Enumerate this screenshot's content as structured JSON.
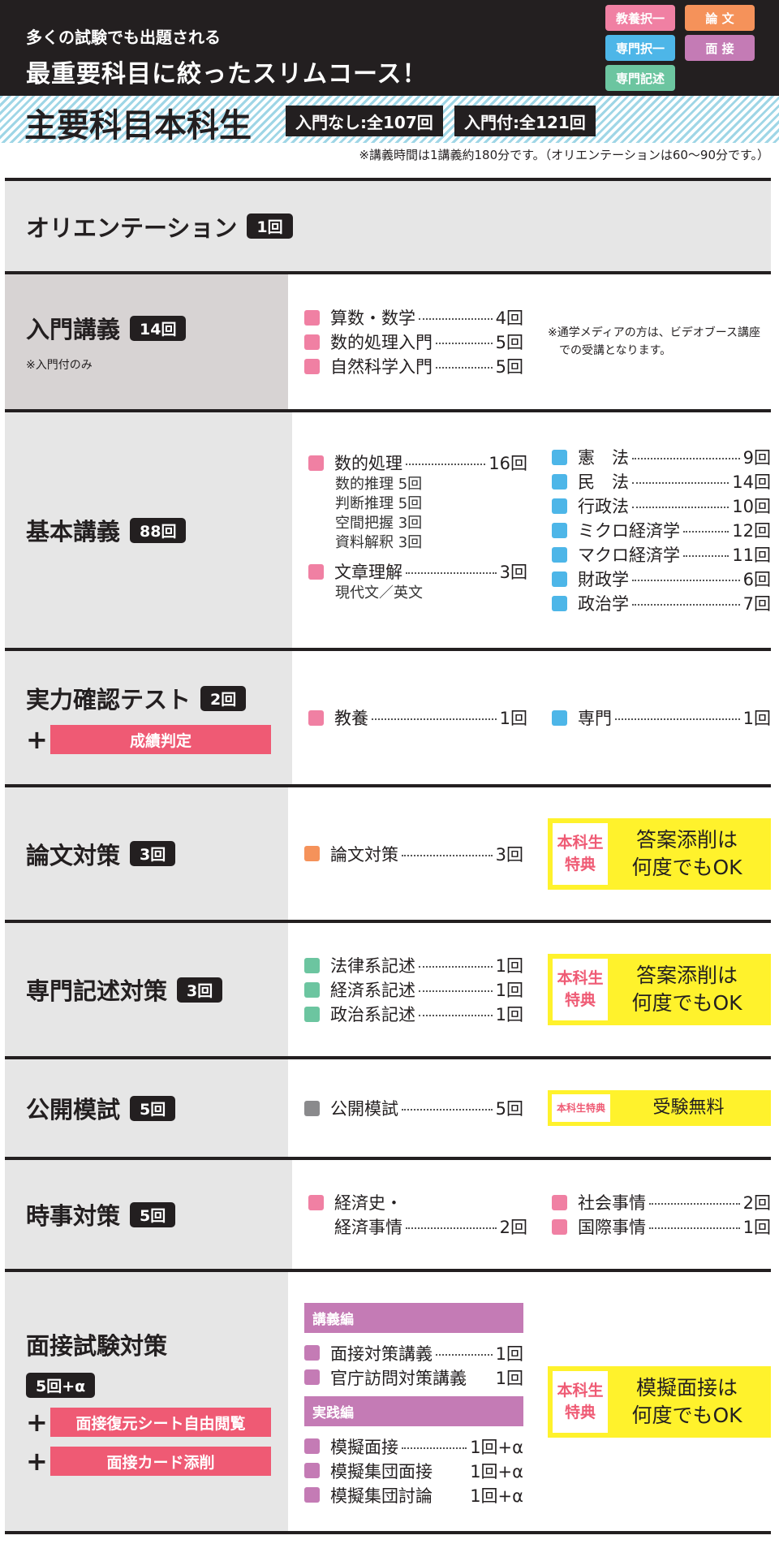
{
  "header": {
    "tagline1": "多くの試験でも出題される",
    "tagline2": "最重要科目に絞ったスリムコース！",
    "badges": [
      {
        "label": "教養択一",
        "color": "#f080a3"
      },
      {
        "label": "論 文",
        "color": "#f5925a"
      },
      {
        "label": "専門択一",
        "color": "#4db6e8"
      },
      {
        "label": "面 接",
        "color": "#c47bb5"
      },
      {
        "label": "専門記述",
        "color": "#6cc5a0"
      }
    ]
  },
  "band": {
    "title": "主要科目本科生",
    "chip1": "入門なし:全107回",
    "chip2": "入門付:全121回"
  },
  "note": "※講義時間は1講義約180分です。（オリエンテーションは60〜90分です。）",
  "colors": {
    "pink": "#f080a3",
    "blue": "#4db6e8",
    "orange": "#f5925a",
    "green": "#6cc5a0",
    "purple": "#c47bb5",
    "gray": "#8a8a8c",
    "red": "#ef5a74",
    "yellow": "#fff22c"
  },
  "sections": [
    {
      "title": "オリエンテーション",
      "count": "1回"
    },
    {
      "title": "入門講義",
      "count": "14回",
      "note": "※入門付のみ",
      "columns": [
        [
          {
            "label": "算数・数学",
            "count": "4回",
            "color": "pink"
          },
          {
            "label": "数的処理入門",
            "count": "5回",
            "color": "pink"
          },
          {
            "label": "自然科学入門",
            "count": "5回",
            "color": "pink"
          }
        ]
      ],
      "side_note": "※通学メディアの方は、ビデオブース講座での受講となります。"
    },
    {
      "title": "基本講義",
      "count": "88回",
      "columns": [
        [
          {
            "label": "数的処理",
            "count": "16回",
            "color": "pink",
            "sub": [
              "数的推理 5回",
              "判断推理 5回",
              "空間把握 3回",
              "資料解釈 3回"
            ]
          },
          {
            "label": "文章理解",
            "count": "3回",
            "color": "pink",
            "sub": [
              "現代文／英文"
            ]
          }
        ],
        [
          {
            "label": "憲　法",
            "count": "9回",
            "color": "blue"
          },
          {
            "label": "民　法",
            "count": "14回",
            "color": "blue"
          },
          {
            "label": "行政法",
            "count": "10回",
            "color": "blue"
          },
          {
            "label": "ミクロ経済学",
            "count": "12回",
            "color": "blue"
          },
          {
            "label": "マクロ経済学",
            "count": "11回",
            "color": "blue"
          },
          {
            "label": "財政学",
            "count": "6回",
            "color": "blue"
          },
          {
            "label": "政治学",
            "count": "7回",
            "color": "blue"
          }
        ]
      ]
    },
    {
      "title": "実力確認テスト",
      "count": "2回",
      "extras": [
        "成績判定"
      ],
      "columns": [
        [
          {
            "label": "教養",
            "count": "1回",
            "color": "pink"
          }
        ],
        [
          {
            "label": "専門",
            "count": "1回",
            "color": "blue"
          }
        ]
      ]
    },
    {
      "title": "論文対策",
      "count": "3回",
      "columns": [
        [
          {
            "label": "論文対策",
            "count": "3回",
            "color": "orange"
          }
        ]
      ],
      "bonus": {
        "tag": [
          "本科生",
          "特典"
        ],
        "text": [
          "答案添削は",
          "何度でもOK"
        ]
      }
    },
    {
      "title": "専門記述対策",
      "count": "3回",
      "columns": [
        [
          {
            "label": "法律系記述",
            "count": "1回",
            "color": "green"
          },
          {
            "label": "経済系記述",
            "count": "1回",
            "color": "green"
          },
          {
            "label": "政治系記述",
            "count": "1回",
            "color": "green"
          }
        ]
      ],
      "bonus": {
        "tag": [
          "本科生",
          "特典"
        ],
        "text": [
          "答案添削は",
          "何度でもOK"
        ]
      }
    },
    {
      "title": "公開模試",
      "count": "5回",
      "columns": [
        [
          {
            "label": "公開模試",
            "count": "5回",
            "color": "gray"
          }
        ]
      ],
      "bonus": {
        "tag": [
          "本科生特典"
        ],
        "text": [
          "受験無料"
        ],
        "small": true
      }
    },
    {
      "title": "時事対策",
      "count": "5回",
      "columns": [
        [
          {
            "label": "経済史・",
            "count": "",
            "color": "pink",
            "noLead": true
          },
          {
            "label": "経済事情",
            "count": "2回",
            "color": "",
            "indent": true
          }
        ],
        [
          {
            "label": "社会事情",
            "count": "2回",
            "color": "pink"
          },
          {
            "label": "国際事情",
            "count": "1回",
            "color": "pink"
          }
        ]
      ]
    },
    {
      "title": "面接試験対策",
      "count": "5回+α",
      "countBlock": true,
      "extras": [
        "面接復元シート自由閲覧",
        "面接カード添削"
      ],
      "columns": [
        [
          {
            "group": "講義編"
          },
          {
            "label": "面接対策講義",
            "count": "1回",
            "color": "purple"
          },
          {
            "label": "官庁訪問対策講義",
            "count": "1回",
            "color": "purple",
            "noLead": true
          },
          {
            "group": "実践編"
          },
          {
            "label": "模擬面接",
            "count": "1回+α",
            "color": "purple"
          },
          {
            "label": "模擬集団面接",
            "count": "1回+α",
            "color": "purple",
            "noLead": true
          },
          {
            "label": "模擬集団討論",
            "count": "1回+α",
            "color": "purple",
            "noLead": true
          }
        ]
      ],
      "bonus": {
        "tag": [
          "本科生",
          "特典"
        ],
        "text": [
          "模擬面接は",
          "何度でもOK"
        ]
      }
    }
  ]
}
